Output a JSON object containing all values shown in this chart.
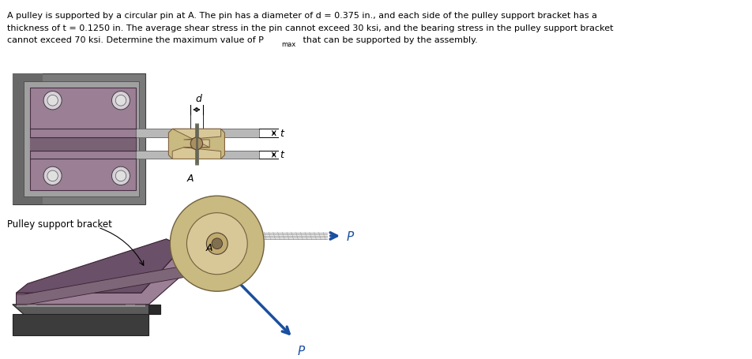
{
  "bg_color": "#ffffff",
  "text_color": "#000000",
  "arrow_color": "#1a4f9f",
  "gray_outer": "#7a7a7a",
  "gray_inner": "#a0a0a0",
  "gray_shadow": "#909090",
  "bracket_purple": "#9a7f95",
  "bracket_dark": "#6a5068",
  "bracket_mid": "#7d6678",
  "base_dark": "#3a3a3a",
  "base_mid": "#555555",
  "base_light": "#888888",
  "pulley_outer": "#c8ba80",
  "pulley_mid": "#d8c898",
  "pulley_inner": "#c0aa70",
  "pulley_hub": "#a89060",
  "pin_color": "#888878",
  "bar_color": "#c0c0c0",
  "bar_edge": "#888888",
  "screw_outer": "#d8d0d8",
  "screw_inner": "#b8b0b8",
  "line1": "A pulley is supported by a circular pin at A. The pin has a diameter of d = 0.375 in., and each side of the pulley support bracket has a",
  "line2": "thickness of t = 0.1250 in. The average shear stress in the pin cannot exceed 30 ksi, and the bearing stress in the pulley support bracket",
  "line3a": "cannot exceed 70 ksi. Determine the maximum value of P",
  "line3b": "max",
  "line3c": " that can be supported by the assembly."
}
